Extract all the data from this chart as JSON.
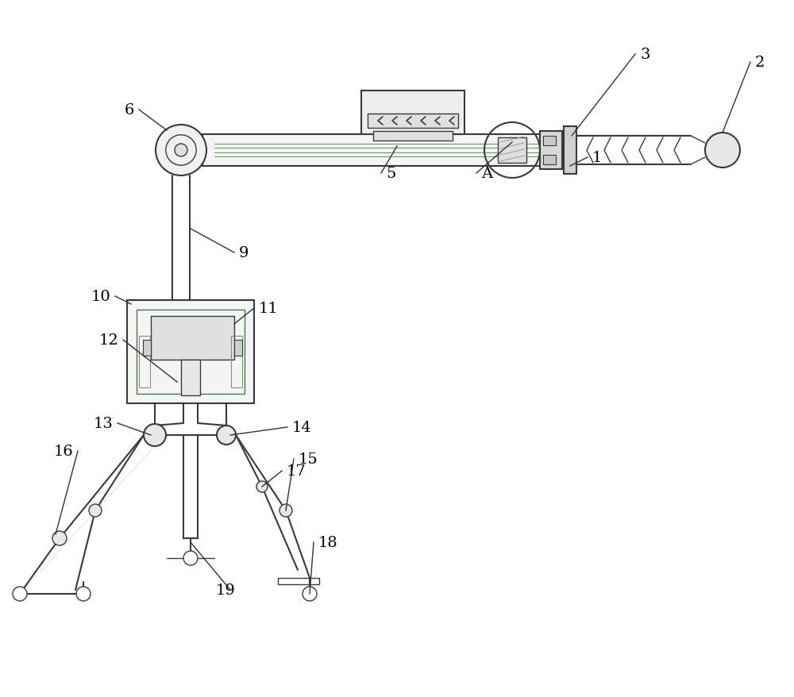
{
  "bg_color": "#ffffff",
  "lc": "#3a3a3a",
  "lc_green": "#4a7a4a",
  "fig_width": 10.0,
  "fig_height": 8.79,
  "dpi": 100
}
